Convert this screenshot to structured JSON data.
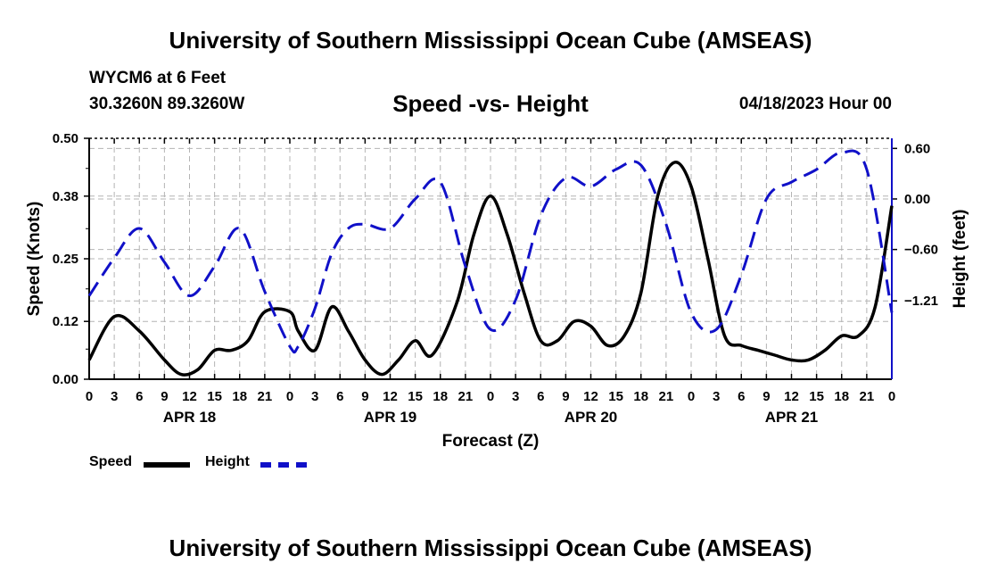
{
  "header": {
    "title": "University of Southern Mississippi Ocean Cube (AMSEAS)",
    "station": "WYCM6 at 6 Feet",
    "coords": "30.3260N  89.3260W",
    "chart_title": "Speed -vs- Height",
    "date": "04/18/2023 Hour 00"
  },
  "footer": {
    "title": "University of Southern Mississippi Ocean Cube (AMSEAS)"
  },
  "legend": {
    "speed": "Speed",
    "height": "Height"
  },
  "colors": {
    "speed": "#000000",
    "height": "#1010c8",
    "grid": "#b4b4b4"
  },
  "chart_data": {
    "type": "line",
    "title": "Speed -vs- Height",
    "xlabel": "Forecast (Z)",
    "ylabel": "Speed (Knots)",
    "y2label": "Height (feet)",
    "xlim": [
      0,
      96
    ],
    "ylim": [
      0,
      0.5
    ],
    "y2lim": [
      -2.14,
      0.72
    ],
    "x_tick_labels": [
      "0",
      "3",
      "6",
      "9",
      "12",
      "15",
      "18",
      "21",
      "0",
      "3",
      "6",
      "9",
      "12",
      "15",
      "18",
      "21",
      "0",
      "3",
      "6",
      "9",
      "12",
      "15",
      "18",
      "21",
      "0",
      "3",
      "6",
      "9",
      "12",
      "15",
      "18",
      "21",
      "0"
    ],
    "y_ticks": [
      0.0,
      0.12,
      0.25,
      0.38,
      0.5
    ],
    "y_tick_labels": [
      "0.00",
      "0.12",
      "0.25",
      "0.38",
      "0.50"
    ],
    "y2_ticks": [
      -1.21,
      -0.6,
      0.0,
      0.6
    ],
    "y2_tick_labels": [
      "−1.21",
      "−0.60",
      "0.00",
      "0.60"
    ],
    "day_labels": [
      {
        "label": "APR 18",
        "x": 12
      },
      {
        "label": "APR 19",
        "x": 36
      },
      {
        "label": "APR 20",
        "x": 60
      },
      {
        "label": "APR 21",
        "x": 84
      }
    ],
    "grid": true,
    "series": [
      {
        "name": "Speed",
        "axis": "left",
        "x": [
          0,
          3,
          6,
          9,
          11,
          13,
          15,
          17,
          19,
          21,
          24,
          25,
          27,
          29,
          31,
          33,
          35,
          37,
          39,
          41,
          44,
          46,
          48,
          50,
          52,
          54,
          56,
          58,
          60,
          62,
          64,
          66,
          68,
          70,
          72,
          74,
          76,
          78,
          80,
          82,
          84,
          86,
          88,
          90,
          92,
          94,
          96
        ],
        "values": [
          0.04,
          0.13,
          0.1,
          0.04,
          0.01,
          0.02,
          0.06,
          0.06,
          0.08,
          0.14,
          0.14,
          0.1,
          0.06,
          0.15,
          0.1,
          0.04,
          0.01,
          0.04,
          0.08,
          0.05,
          0.16,
          0.3,
          0.38,
          0.3,
          0.18,
          0.08,
          0.08,
          0.12,
          0.11,
          0.07,
          0.09,
          0.18,
          0.38,
          0.45,
          0.4,
          0.25,
          0.09,
          0.07,
          0.06,
          0.05,
          0.04,
          0.04,
          0.06,
          0.09,
          0.09,
          0.15,
          0.36
        ]
      },
      {
        "name": "Height",
        "axis": "right",
        "x": [
          0,
          3,
          6,
          9,
          12,
          15,
          18,
          21,
          24,
          25,
          27,
          29,
          31,
          33,
          36,
          39,
          42,
          45,
          48,
          51,
          54,
          57,
          60,
          63,
          66,
          69,
          72,
          75,
          78,
          81,
          84,
          87,
          90,
          93,
          96
        ],
        "values": [
          -1.15,
          -0.7,
          -0.35,
          -0.75,
          -1.15,
          -0.8,
          -0.35,
          -1.1,
          -1.75,
          -1.75,
          -1.3,
          -0.65,
          -0.35,
          -0.3,
          -0.35,
          0.0,
          0.2,
          -0.8,
          -1.55,
          -1.2,
          -0.2,
          0.25,
          0.15,
          0.35,
          0.4,
          -0.3,
          -1.35,
          -1.55,
          -0.9,
          0.0,
          0.2,
          0.35,
          0.55,
          0.35,
          -1.35
        ]
      }
    ]
  }
}
